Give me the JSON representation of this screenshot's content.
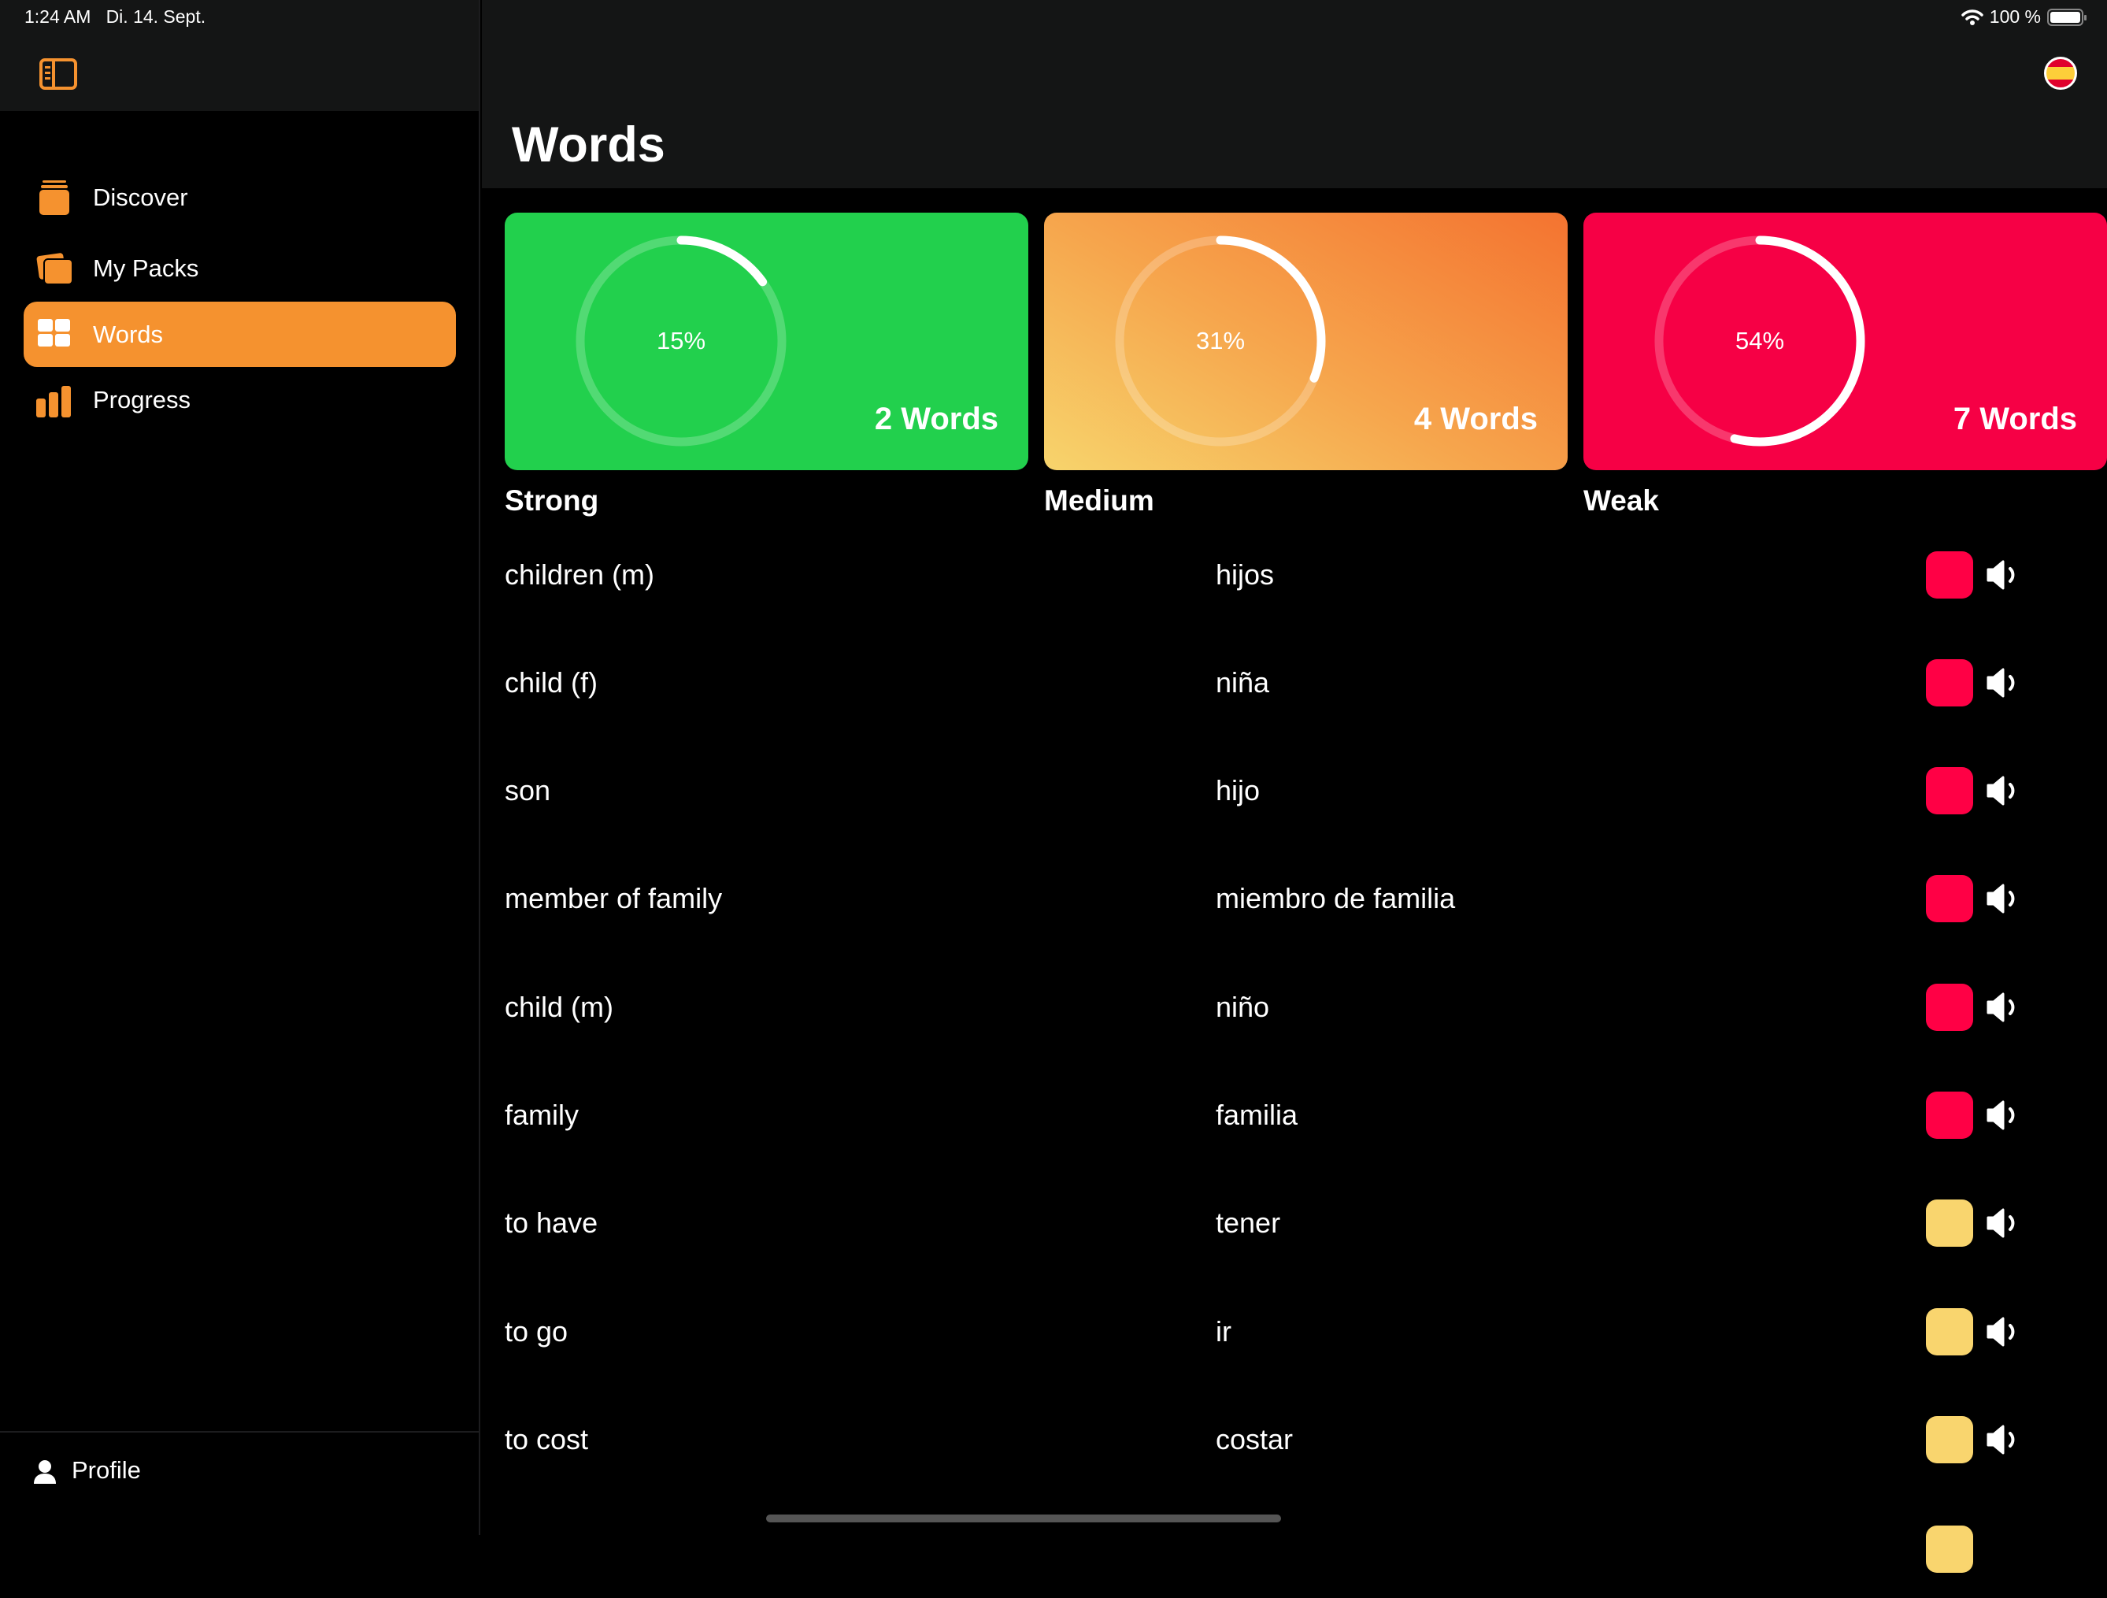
{
  "status_bar": {
    "time": "1:24 AM",
    "date": "Di. 14. Sept.",
    "battery": "100 %"
  },
  "sidebar": {
    "items": [
      {
        "label": "Discover",
        "icon": "tray-stack-icon",
        "active": false
      },
      {
        "label": "My Packs",
        "icon": "cards-stack-icon",
        "active": false
      },
      {
        "label": "Words",
        "icon": "grid-icon",
        "active": true
      },
      {
        "label": "Progress",
        "icon": "bar-chart-icon",
        "active": false
      }
    ],
    "profile": "Profile"
  },
  "header": {
    "title": "Words",
    "language_flag": "spain-flag-icon"
  },
  "colors": {
    "accent": "#F5922F",
    "strong": "#22D04D",
    "medium_start": "#F7D46C",
    "medium_end": "#F47330",
    "weak": "#F60045",
    "weak_status": "#FF0045",
    "medium_status": "#F9D56E"
  },
  "cards": [
    {
      "label": "Strong",
      "percent_label": "15%",
      "percent": 15,
      "count": "2 Words"
    },
    {
      "label": "Medium",
      "percent_label": "31%",
      "percent": 31,
      "count": "4 Words"
    },
    {
      "label": "Weak",
      "percent_label": "54%",
      "percent": 54,
      "count": "7 Words"
    }
  ],
  "words": [
    {
      "en": "children (m)",
      "es": "hijos",
      "status": "weak"
    },
    {
      "en": "child (f)",
      "es": "niña",
      "status": "weak"
    },
    {
      "en": "son",
      "es": "hijo",
      "status": "weak"
    },
    {
      "en": "member of family",
      "es": "miembro de familia",
      "status": "weak"
    },
    {
      "en": "child (m)",
      "es": "niño",
      "status": "weak"
    },
    {
      "en": "family",
      "es": "familia",
      "status": "weak"
    },
    {
      "en": "to have",
      "es": "tener",
      "status": "medium"
    },
    {
      "en": "to go",
      "es": "ir",
      "status": "medium"
    },
    {
      "en": "to cost",
      "es": "costar",
      "status": "medium"
    }
  ]
}
